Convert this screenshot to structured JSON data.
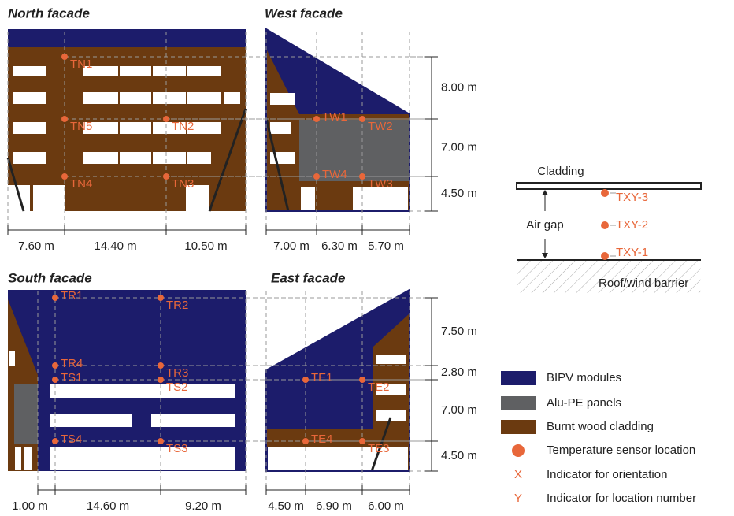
{
  "facades": [
    {
      "title": "North facade",
      "sensors": [
        "TN1",
        "TN5",
        "TN2",
        "TN4",
        "TN3"
      ],
      "widths": [
        "7.60 m",
        "14.40 m",
        "10.50 m"
      ]
    },
    {
      "title": "West facade",
      "sensors": [
        "TW1",
        "TW2",
        "TW4",
        "TW3"
      ],
      "widths": [
        "7.00 m",
        "6.30 m",
        "5.70 m"
      ]
    },
    {
      "title": "South facade",
      "sensors": [
        "TR1",
        "TR2",
        "TR4",
        "TR3",
        "TS1",
        "TS2",
        "TS4",
        "TS3"
      ],
      "widths": [
        "1.00 m",
        "14.60 m",
        "9.20 m"
      ]
    },
    {
      "title": "East facade",
      "sensors": [
        "TE1",
        "TE2",
        "TE4",
        "TE3"
      ],
      "widths": [
        "4.50 m",
        "6.90 m",
        "6.00 m"
      ]
    }
  ],
  "heights_top": [
    "8.00 m",
    "7.00 m",
    "4.50 m"
  ],
  "heights_bottom": [
    "7.50 m",
    "2.80 m",
    "7.00 m",
    "4.50 m"
  ],
  "detail": {
    "cladding": "Cladding",
    "air_gap": "Air gap",
    "sensors": [
      "TXY-3",
      "TXY-2",
      "TXY-1"
    ],
    "barrier": "Roof/wind barrier"
  },
  "legend": [
    {
      "label": "BIPV modules"
    },
    {
      "label": "Alu-PE panels"
    },
    {
      "label": "Burnt wood cladding"
    },
    {
      "label": "Temperature sensor location"
    },
    {
      "symbol": "X",
      "label": "Indicator for orientation"
    },
    {
      "symbol": "Y",
      "label": "Indicator for location number"
    }
  ]
}
